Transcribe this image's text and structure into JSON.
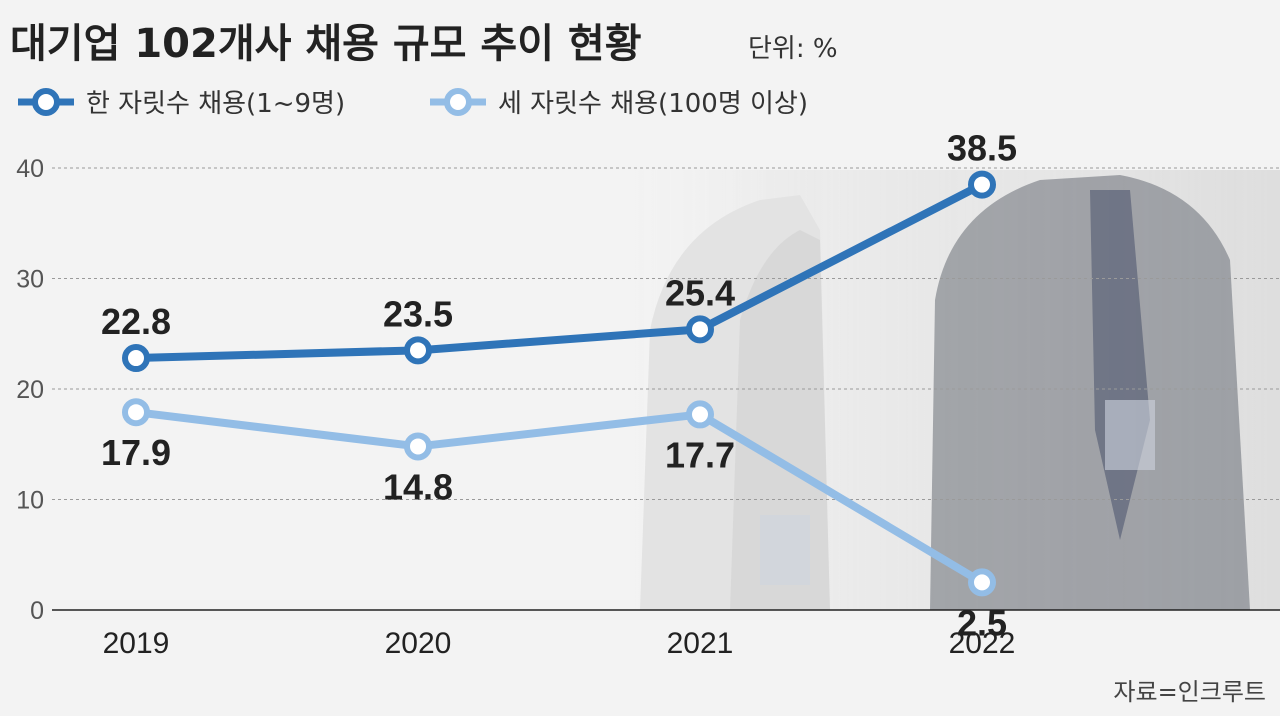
{
  "chart_data": {
    "type": "line",
    "title": "대기업 102개사 채용 규모 추이 현황",
    "unit_label": "단위: %",
    "source": "자료=인크루트",
    "categories": [
      "2019",
      "2020",
      "2021",
      "2022"
    ],
    "ylim": [
      0,
      40
    ],
    "yticks": [
      0,
      10,
      20,
      30,
      40
    ],
    "grid": true,
    "legend_position": "top-left",
    "series": [
      {
        "name": "한 자릿수 채용(1~9명)",
        "values": [
          22.8,
          23.5,
          25.4,
          38.5
        ],
        "labels": [
          "22.8",
          "23.5",
          "25.4",
          "38.5"
        ],
        "label_position": "above",
        "color": "#2f74b8"
      },
      {
        "name": "세 자릿수 채용(100명 이상)",
        "values": [
          17.9,
          14.8,
          17.7,
          2.5
        ],
        "labels": [
          "17.9",
          "14.8",
          "17.7",
          "2.5"
        ],
        "label_position": "below",
        "color": "#93bde6"
      }
    ]
  }
}
